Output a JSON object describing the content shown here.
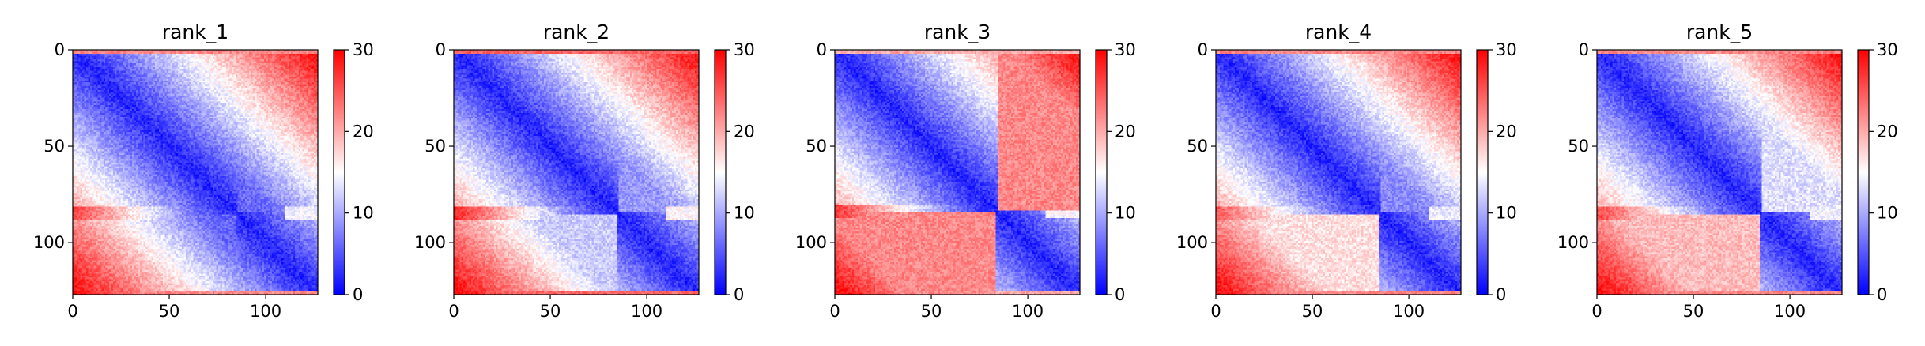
{
  "figure": {
    "colormap": {
      "name": "bwr",
      "stops": [
        "#0000ff",
        "#ffffff",
        "#ff0000"
      ]
    },
    "frame_color": "#000000",
    "text_color": "#000000"
  },
  "chart_data": [
    {
      "type": "heatmap",
      "title": "rank_1",
      "matrix_size": 128,
      "xlim": [
        0,
        127
      ],
      "ylim": [
        127,
        0
      ],
      "x_ticks": [
        0,
        50,
        100
      ],
      "x_tick_labels": [
        "0",
        "50",
        "100"
      ],
      "y_ticks": [
        0,
        50,
        100
      ],
      "y_tick_labels": [
        "0",
        "50",
        "100"
      ],
      "colorbar": {
        "min": 0,
        "max": 30,
        "ticks": [
          0,
          10,
          20,
          30
        ],
        "tick_labels": [
          "0",
          "10",
          "20",
          "30"
        ]
      },
      "value_range": [
        0,
        30
      ],
      "pattern": {
        "diag": 85,
        "band_left": 26,
        "lower_left": 6,
        "upper_right": 6,
        "lower_right": 4,
        "edge_rows": 22,
        "row_band_width": 3,
        "lower_band_row": 110,
        "lower_band_value": 4
      }
    },
    {
      "type": "heatmap",
      "title": "rank_2",
      "matrix_size": 128,
      "xlim": [
        0,
        127
      ],
      "ylim": [
        127,
        0
      ],
      "x_ticks": [
        0,
        50,
        100
      ],
      "x_tick_labels": [
        "0",
        "50",
        "100"
      ],
      "y_ticks": [
        0,
        50,
        100
      ],
      "y_tick_labels": [
        "0",
        "50",
        "100"
      ],
      "colorbar": {
        "min": 0,
        "max": 30,
        "ticks": [
          0,
          10,
          20,
          30
        ],
        "tick_labels": [
          "0",
          "10",
          "20",
          "30"
        ]
      },
      "value_range": [
        0,
        30
      ],
      "pattern": {
        "diag": 85,
        "band_left": 28,
        "lower_left": 12,
        "upper_right": 9,
        "lower_right": 6,
        "edge_rows": 24,
        "row_band_width": 3,
        "lower_band_row": 108,
        "lower_band_value": 6
      }
    },
    {
      "type": "heatmap",
      "title": "rank_3",
      "matrix_size": 128,
      "xlim": [
        0,
        127
      ],
      "ylim": [
        127,
        0
      ],
      "x_ticks": [
        0,
        50,
        100
      ],
      "x_tick_labels": [
        "0",
        "50",
        "100"
      ],
      "y_ticks": [
        0,
        50,
        100
      ],
      "y_tick_labels": [
        "0",
        "50",
        "100"
      ],
      "colorbar": {
        "min": 0,
        "max": 30,
        "ticks": [
          0,
          10,
          20,
          30
        ],
        "tick_labels": [
          "0",
          "10",
          "20",
          "30"
        ]
      },
      "value_range": [
        0,
        30
      ],
      "pattern": {
        "diag": 84,
        "band_left": 27,
        "lower_left": 22,
        "upper_right": 22,
        "lower_right": 4,
        "edge_rows": 20,
        "row_band_width": 3,
        "lower_band_row": 110,
        "lower_band_value": 22
      }
    },
    {
      "type": "heatmap",
      "title": "rank_4",
      "matrix_size": 128,
      "xlim": [
        0,
        127
      ],
      "ylim": [
        127,
        0
      ],
      "x_ticks": [
        0,
        50,
        100
      ],
      "x_tick_labels": [
        "0",
        "50",
        "100"
      ],
      "y_ticks": [
        0,
        50,
        100
      ],
      "y_tick_labels": [
        "0",
        "50",
        "100"
      ],
      "colorbar": {
        "min": 0,
        "max": 30,
        "ticks": [
          0,
          10,
          20,
          30
        ],
        "tick_labels": [
          "0",
          "10",
          "20",
          "30"
        ]
      },
      "value_range": [
        0,
        30
      ],
      "pattern": {
        "diag": 85,
        "band_left": 25,
        "lower_left": 17,
        "upper_right": 8,
        "lower_right": 5,
        "edge_rows": 22,
        "row_band_width": 3,
        "lower_band_row": 112,
        "lower_band_value": 17
      }
    },
    {
      "type": "heatmap",
      "title": "rank_5",
      "matrix_size": 128,
      "xlim": [
        0,
        127
      ],
      "ylim": [
        127,
        0
      ],
      "x_ticks": [
        0,
        50,
        100
      ],
      "x_tick_labels": [
        "0",
        "50",
        "100"
      ],
      "y_ticks": [
        0,
        50,
        100
      ],
      "y_tick_labels": [
        "0",
        "50",
        "100"
      ],
      "colorbar": {
        "min": 0,
        "max": 30,
        "ticks": [
          0,
          10,
          20,
          30
        ],
        "tick_labels": [
          "0",
          "10",
          "20",
          "30"
        ]
      },
      "value_range": [
        0,
        30
      ],
      "pattern": {
        "diag": 85,
        "band_left": 26,
        "lower_left": 19,
        "upper_right": 13,
        "lower_right": 4,
        "edge_rows": 22,
        "row_band_width": 3,
        "lower_band_row": 112,
        "lower_band_value": 19
      }
    }
  ]
}
